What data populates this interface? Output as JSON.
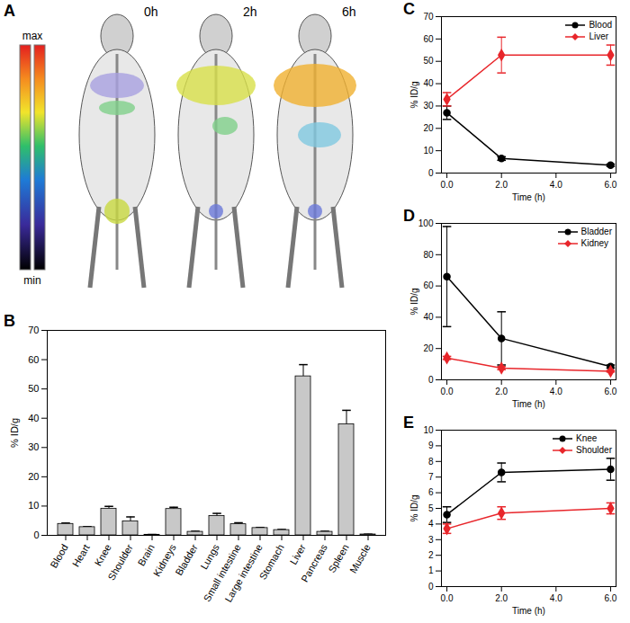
{
  "image_panel": {
    "panel": "A",
    "labels": [
      "0h",
      "2h",
      "6h"
    ],
    "colorbar_labels": [
      "max",
      "min"
    ]
  },
  "chart_data": [
    {
      "type": "bar",
      "panel": "B",
      "ylabel": "% ID/g",
      "categories": [
        "Blood",
        "Heart",
        "Knee",
        "Shoulder",
        "Brain",
        "Kidneys",
        "Bladder",
        "Lungs",
        "Small intestine",
        "Large intestine",
        "Stomach",
        "Liver",
        "Pancreas",
        "Spleen",
        "Muscle"
      ],
      "values": [
        3.9,
        2.8,
        9.1,
        4.8,
        0.2,
        9.0,
        1.2,
        6.6,
        3.8,
        2.5,
        1.8,
        54.3,
        1.2,
        37.9,
        0.3
      ],
      "errors": [
        0.3,
        0.2,
        0.8,
        1.5,
        0.1,
        0.6,
        0.2,
        0.9,
        0.5,
        0.2,
        0.2,
        4.0,
        0.2,
        4.8,
        0.1
      ],
      "color": "#c8c8c8",
      "ylim": [
        0,
        70
      ],
      "yticks": [
        0,
        10,
        20,
        30,
        40,
        50,
        60,
        70
      ],
      "grid": false
    },
    {
      "type": "line",
      "panel": "C",
      "xlabel": "Time (h)",
      "ylabel": "% ID/g",
      "x": [
        0,
        2,
        6
      ],
      "xlim": [
        -0.2,
        6.2
      ],
      "xticks": [
        0,
        2,
        4,
        6
      ],
      "ylim": [
        0,
        70
      ],
      "yticks": [
        0,
        10,
        20,
        30,
        40,
        50,
        60,
        70
      ],
      "legend": "top-right",
      "grid": false,
      "series": [
        {
          "name": "Blood",
          "color": "#000000",
          "marker": "circle",
          "values": [
            27,
            6.5,
            3.5
          ],
          "errors": [
            3,
            0.8,
            0.5
          ]
        },
        {
          "name": "Liver",
          "color": "#e8262b",
          "marker": "diamond",
          "values": [
            33,
            52.8,
            52.8
          ],
          "errors": [
            3,
            8,
            4.5
          ]
        }
      ]
    },
    {
      "type": "line",
      "panel": "D",
      "xlabel": "Time (h)",
      "ylabel": "% ID/g",
      "x": [
        0,
        2,
        6
      ],
      "xlim": [
        -0.2,
        6.2
      ],
      "xticks": [
        0,
        2,
        4,
        6
      ],
      "ylim": [
        0,
        100
      ],
      "yticks": [
        0,
        20,
        40,
        60,
        80,
        100
      ],
      "legend": "top-right",
      "grid": false,
      "series": [
        {
          "name": "Bladder",
          "color": "#000000",
          "marker": "circle",
          "values": [
            66,
            26.5,
            8.5
          ],
          "errors": [
            32,
            17,
            1
          ]
        },
        {
          "name": "Kidney",
          "color": "#e8262b",
          "marker": "diamond",
          "values": [
            14,
            7.5,
            5.5
          ],
          "errors": [
            1,
            1,
            0.5
          ]
        }
      ]
    },
    {
      "type": "line",
      "panel": "E",
      "xlabel": "Time (h)",
      "ylabel": "% ID/g",
      "x": [
        0,
        2,
        6
      ],
      "xlim": [
        -0.2,
        6.2
      ],
      "xticks": [
        0,
        2,
        4,
        6
      ],
      "ylim": [
        0,
        10
      ],
      "yticks": [
        0,
        1,
        2,
        3,
        4,
        5,
        6,
        7,
        8,
        9,
        10
      ],
      "legend": "top-right",
      "grid": false,
      "series": [
        {
          "name": "Knee",
          "color": "#000000",
          "marker": "circle",
          "values": [
            4.6,
            7.3,
            7.5
          ],
          "errors": [
            0.5,
            0.6,
            0.7
          ]
        },
        {
          "name": "Shoulder",
          "color": "#e8262b",
          "marker": "diamond",
          "values": [
            3.7,
            4.7,
            5.0
          ],
          "errors": [
            0.3,
            0.4,
            0.35
          ]
        }
      ]
    }
  ]
}
